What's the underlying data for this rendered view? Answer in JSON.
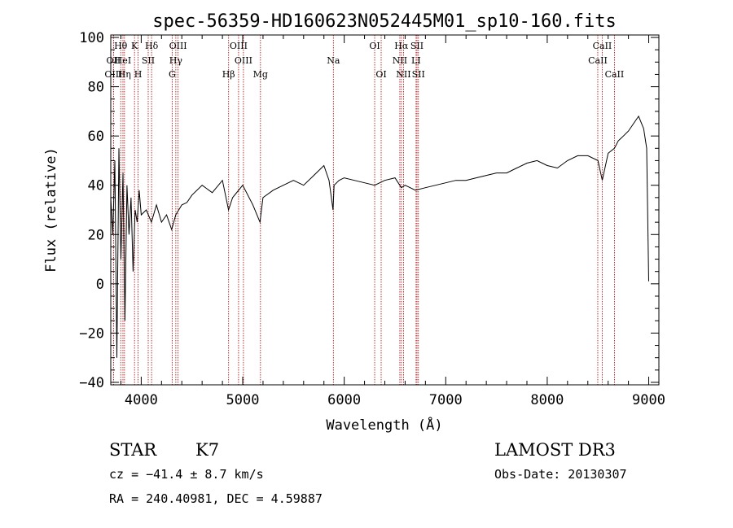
{
  "chart_data": {
    "type": "line",
    "title": "spec-56359-HD160623N052445M01_sp10-160.fits",
    "xlabel": "Wavelength (Å)",
    "ylabel": "Flux (relative)",
    "xlim": [
      3700,
      9100
    ],
    "ylim": [
      -41,
      101
    ],
    "x_ticks": [
      4000,
      5000,
      6000,
      7000,
      8000,
      9000
    ],
    "y_ticks": [
      -40,
      -20,
      0,
      20,
      40,
      60,
      80,
      100
    ],
    "grid": false,
    "series": [
      {
        "x": [
          3700,
          3720,
          3740,
          3760,
          3780,
          3800,
          3820,
          3840,
          3860,
          3880,
          3900,
          3920,
          3940,
          3960,
          3980,
          4000,
          4050,
          4100,
          4150,
          4200,
          4250,
          4300,
          4340,
          4400,
          4450,
          4500,
          4600,
          4700,
          4800,
          4860,
          4900,
          5000,
          5100,
          5170,
          5200,
          5300,
          5400,
          5500,
          5600,
          5700,
          5800,
          5850,
          5890,
          5900,
          5950,
          6000,
          6100,
          6200,
          6300,
          6400,
          6500,
          6563,
          6600,
          6700,
          6800,
          6900,
          7000,
          7100,
          7200,
          7300,
          7400,
          7500,
          7600,
          7700,
          7800,
          7900,
          8000,
          8100,
          8200,
          8300,
          8400,
          8500,
          8542,
          8600,
          8662,
          8700,
          8750,
          8800,
          8850,
          8900,
          8950,
          8980,
          9000
        ],
        "y": [
          35,
          20,
          50,
          -30,
          55,
          10,
          45,
          -15,
          40,
          20,
          35,
          5,
          30,
          25,
          38,
          28,
          30,
          25,
          32,
          25,
          28,
          22,
          28,
          32,
          33,
          36,
          40,
          37,
          42,
          30,
          35,
          40,
          32,
          25,
          35,
          38,
          40,
          42,
          40,
          44,
          48,
          42,
          30,
          40,
          42,
          43,
          42,
          41,
          40,
          42,
          43,
          39,
          40,
          38,
          39,
          40,
          41,
          42,
          42,
          43,
          44,
          45,
          45,
          47,
          49,
          50,
          48,
          47,
          50,
          52,
          52,
          50,
          42,
          53,
          55,
          58,
          60,
          62,
          65,
          68,
          63,
          55,
          1
        ]
      }
    ],
    "spectral_lines": [
      {
        "label": "Hθ",
        "wavelength": 3798,
        "row": 1
      },
      {
        "label": "OII",
        "wavelength": 3727,
        "row": 2
      },
      {
        "label": "OIII",
        "wavelength": 3727,
        "row": 3
      },
      {
        "label": "HeI",
        "wavelength": 3820,
        "row": 2
      },
      {
        "label": "Hη",
        "wavelength": 3835,
        "row": 3
      },
      {
        "label": "K",
        "wavelength": 3934,
        "row": 1
      },
      {
        "label": "SII",
        "wavelength": 4069,
        "row": 2
      },
      {
        "label": "H",
        "wavelength": 3969,
        "row": 3
      },
      {
        "label": "Hδ",
        "wavelength": 4102,
        "row": 1
      },
      {
        "label": "OIII",
        "wavelength": 4363,
        "row": 1
      },
      {
        "label": "Hγ",
        "wavelength": 4341,
        "row": 2
      },
      {
        "label": "G",
        "wavelength": 4305,
        "row": 3
      },
      {
        "label": "OIII",
        "wavelength": 4959,
        "row": 1
      },
      {
        "label": "OIII",
        "wavelength": 5007,
        "row": 2
      },
      {
        "label": "Hβ",
        "wavelength": 4861,
        "row": 3
      },
      {
        "label": "Mg",
        "wavelength": 5175,
        "row": 3
      },
      {
        "label": "Na",
        "wavelength": 5893,
        "row": 2
      },
      {
        "label": "OI",
        "wavelength": 6300,
        "row": 1
      },
      {
        "label": "OI",
        "wavelength": 6364,
        "row": 3
      },
      {
        "label": "Hα",
        "wavelength": 6563,
        "row": 1
      },
      {
        "label": "NII",
        "wavelength": 6548,
        "row": 2
      },
      {
        "label": "NII",
        "wavelength": 6584,
        "row": 3
      },
      {
        "label": "SII",
        "wavelength": 6717,
        "row": 1
      },
      {
        "label": "LI",
        "wavelength": 6708,
        "row": 2
      },
      {
        "label": "SII",
        "wavelength": 6731,
        "row": 3
      },
      {
        "label": "CaII",
        "wavelength": 8542,
        "row": 1
      },
      {
        "label": "CaII",
        "wavelength": 8498,
        "row": 2
      },
      {
        "label": "CaII",
        "wavelength": 8662,
        "row": 3
      }
    ]
  },
  "info": {
    "object_class": "STAR",
    "subclass": "K7",
    "survey": "LAMOST DR3",
    "cz": "cz = −41.4 ± 8.7 km/s",
    "obs_date": "Obs-Date: 20130307",
    "coords": "RA = 240.40981, DEC =   4.59887"
  },
  "colors": {
    "line": "#000000",
    "marker": "#b00000",
    "background": "#ffffff"
  }
}
